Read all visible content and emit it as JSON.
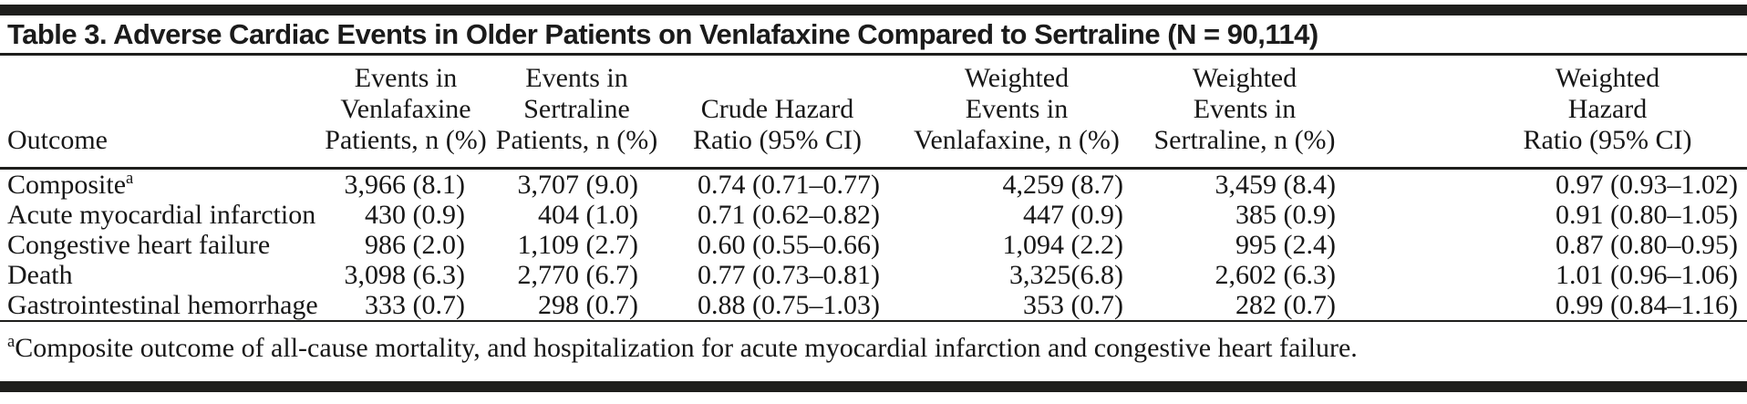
{
  "table": {
    "title": "Table 3. Adverse Cardiac Events in Older Patients on Venlafaxine Compared to Sertraline (N = 90,114)",
    "columns": [
      {
        "id": "outcome",
        "lines": [
          "Outcome"
        ]
      },
      {
        "id": "events-venlafaxine",
        "lines": [
          "Events in",
          "Venlafaxine",
          "Patients, n (%)"
        ]
      },
      {
        "id": "events-sertraline",
        "lines": [
          "Events in",
          "Sertraline",
          "Patients, n (%)"
        ]
      },
      {
        "id": "crude-hazard-ratio",
        "lines": [
          "Crude Hazard",
          "Ratio (95% CI)"
        ]
      },
      {
        "id": "weighted-events-venlafaxine",
        "lines": [
          "Weighted",
          "Events in",
          "Venlafaxine, n (%)"
        ]
      },
      {
        "id": "weighted-events-sertraline",
        "lines": [
          "Weighted",
          "Events in",
          "Sertraline, n (%)"
        ]
      },
      {
        "id": "weighted-hazard-ratio",
        "lines": [
          "Weighted",
          "Hazard",
          "Ratio (95% CI)"
        ]
      }
    ],
    "rows": [
      {
        "outcome": "Composite",
        "outcome_sup": "a",
        "values": [
          "3,966 (8.1)",
          "3,707 (9.0)",
          "0.74 (0.71–0.77)",
          "4,259 (8.7)",
          "3,459 (8.4)",
          "0.97 (0.93–1.02)"
        ]
      },
      {
        "outcome": "Acute myocardial infarction",
        "outcome_sup": "",
        "values": [
          "430 (0.9)",
          "404 (1.0)",
          "0.71 (0.62–0.82)",
          "447 (0.9)",
          "385 (0.9)",
          "0.91 (0.80–1.05)"
        ]
      },
      {
        "outcome": "Congestive heart failure",
        "outcome_sup": "",
        "values": [
          "986 (2.0)",
          "1,109 (2.7)",
          "0.60 (0.55–0.66)",
          "1,094 (2.2)",
          "995 (2.4)",
          "0.87 (0.80–0.95)"
        ]
      },
      {
        "outcome": "Death",
        "outcome_sup": "",
        "values": [
          "3,098 (6.3)",
          "2,770 (6.7)",
          "0.77 (0.73–0.81)",
          "3,325(6.8)",
          "2,602 (6.3)",
          "1.01 (0.96–1.06)"
        ]
      },
      {
        "outcome": "Gastrointestinal hemorrhage",
        "outcome_sup": "",
        "values": [
          "333 (0.7)",
          "298 (0.7)",
          "0.88 (0.75–1.03)",
          "353 (0.7)",
          "282 (0.7)",
          "0.99 (0.84–1.16)"
        ]
      }
    ],
    "footnote": {
      "sup": "a",
      "text": "Composite outcome of all-cause mortality, and hospitalization for acute myocardial infarction and congestive heart failure."
    }
  },
  "colors": {
    "rule": "#1e1e1c",
    "text": "#171717",
    "background": "#ffffff"
  }
}
